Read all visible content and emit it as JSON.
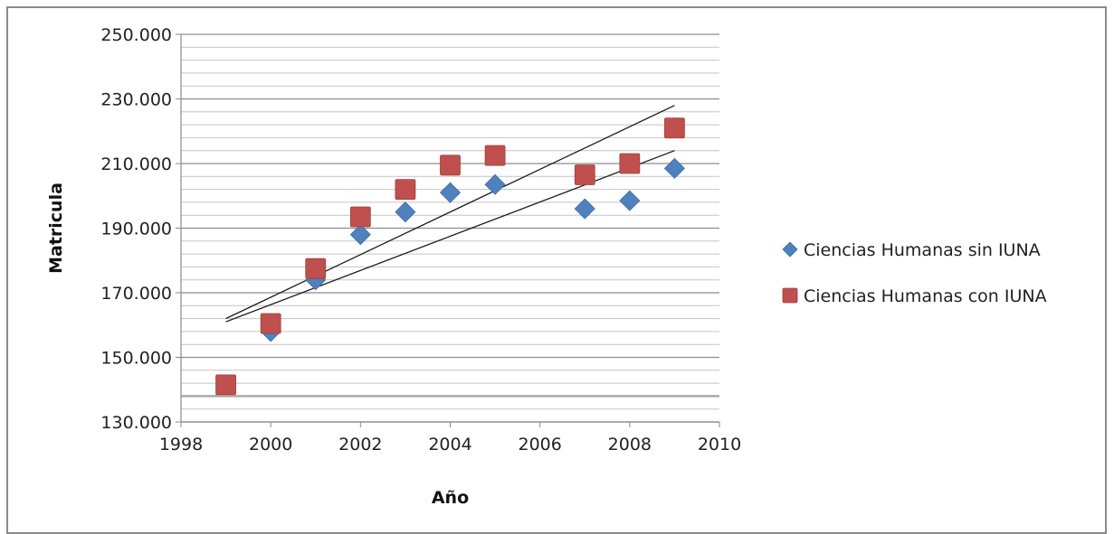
{
  "chart_data": {
    "type": "scatter",
    "xlabel": "Año",
    "ylabel": "Matricula",
    "xlim": [
      1998,
      2010
    ],
    "ylim": [
      130000,
      250000
    ],
    "x_ticks": [
      "1998",
      "2000",
      "2002",
      "2004",
      "2006",
      "2008",
      "2010"
    ],
    "y_ticks": [
      "130.000",
      "150.000",
      "170.000",
      "190.000",
      "210.000",
      "230.000",
      "250.000"
    ],
    "legend_position": "right",
    "grid": "horizontal",
    "series": [
      {
        "name": "Ciencias Humanas sin IUNA",
        "marker": "diamond",
        "color": "#4f81bd",
        "x": [
          2000,
          2001,
          2002,
          2003,
          2004,
          2005,
          2007,
          2008,
          2009
        ],
        "y": [
          158000,
          174000,
          188000,
          195000,
          201000,
          203500,
          196000,
          198500,
          208500
        ],
        "trendline": {
          "x": [
            1999,
            2009
          ],
          "y": [
            161000,
            214000
          ]
        }
      },
      {
        "name": "Ciencias Humanas con IUNA",
        "marker": "square",
        "color": "#c0504d",
        "x": [
          1999,
          2000,
          2001,
          2002,
          2003,
          2004,
          2005,
          2007,
          2008,
          2009
        ],
        "y": [
          141500,
          160500,
          177500,
          193500,
          202000,
          209500,
          212500,
          206500,
          210000,
          221000
        ],
        "trendline": {
          "x": [
            1999,
            2009
          ],
          "y": [
            162000,
            228000
          ]
        }
      }
    ]
  }
}
